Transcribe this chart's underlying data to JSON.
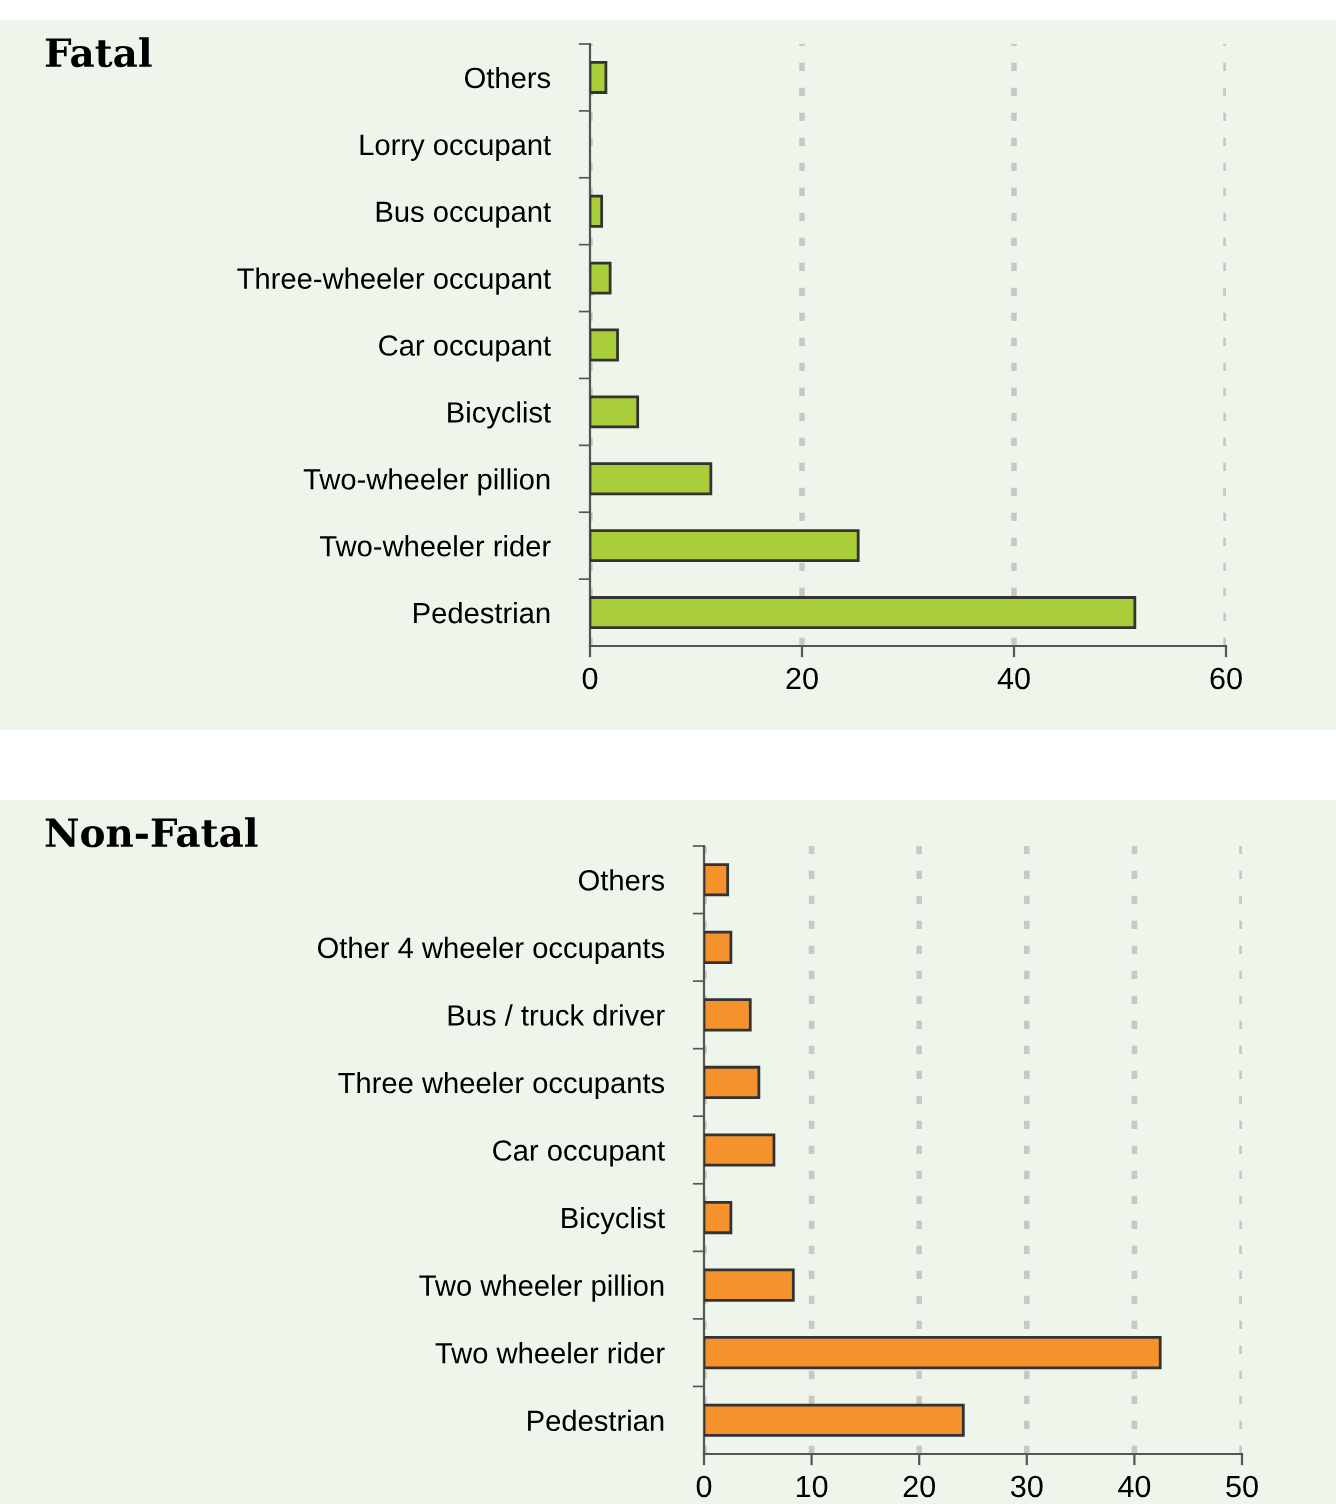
{
  "chart_data": [
    {
      "type": "bar",
      "orientation": "horizontal",
      "title": "Fatal",
      "categories": [
        "Others",
        "Lorry occupant",
        "Bus occupant",
        "Three-wheeler occupant",
        "Car occupant",
        "Bicyclist",
        "Two-wheeler pillion",
        "Two-wheeler rider",
        "Pedestrian"
      ],
      "values": [
        1.5,
        null,
        1.1,
        1.9,
        2.6,
        4.5,
        11.4,
        25.3,
        51.4
      ],
      "color": "#aacd3a",
      "xlim": [
        0,
        60
      ],
      "xticks": [
        0,
        20,
        40,
        60
      ],
      "grid": "x"
    },
    {
      "type": "bar",
      "orientation": "horizontal",
      "title": "Non-Fatal",
      "categories": [
        "Others",
        "Other 4 wheeler occupants",
        "Bus / truck driver",
        "Three wheeler occupants",
        "Car occupant",
        "Bicyclist",
        "Two wheeler pillion",
        "Two wheeler rider",
        "Pedestrian"
      ],
      "values": [
        2.2,
        2.5,
        4.3,
        5.1,
        6.5,
        2.5,
        8.3,
        42.4,
        24.1
      ],
      "color": "#f5922b",
      "xlim": [
        0,
        50
      ],
      "xticks": [
        0,
        10,
        20,
        30,
        40,
        50
      ],
      "grid": "x"
    }
  ]
}
